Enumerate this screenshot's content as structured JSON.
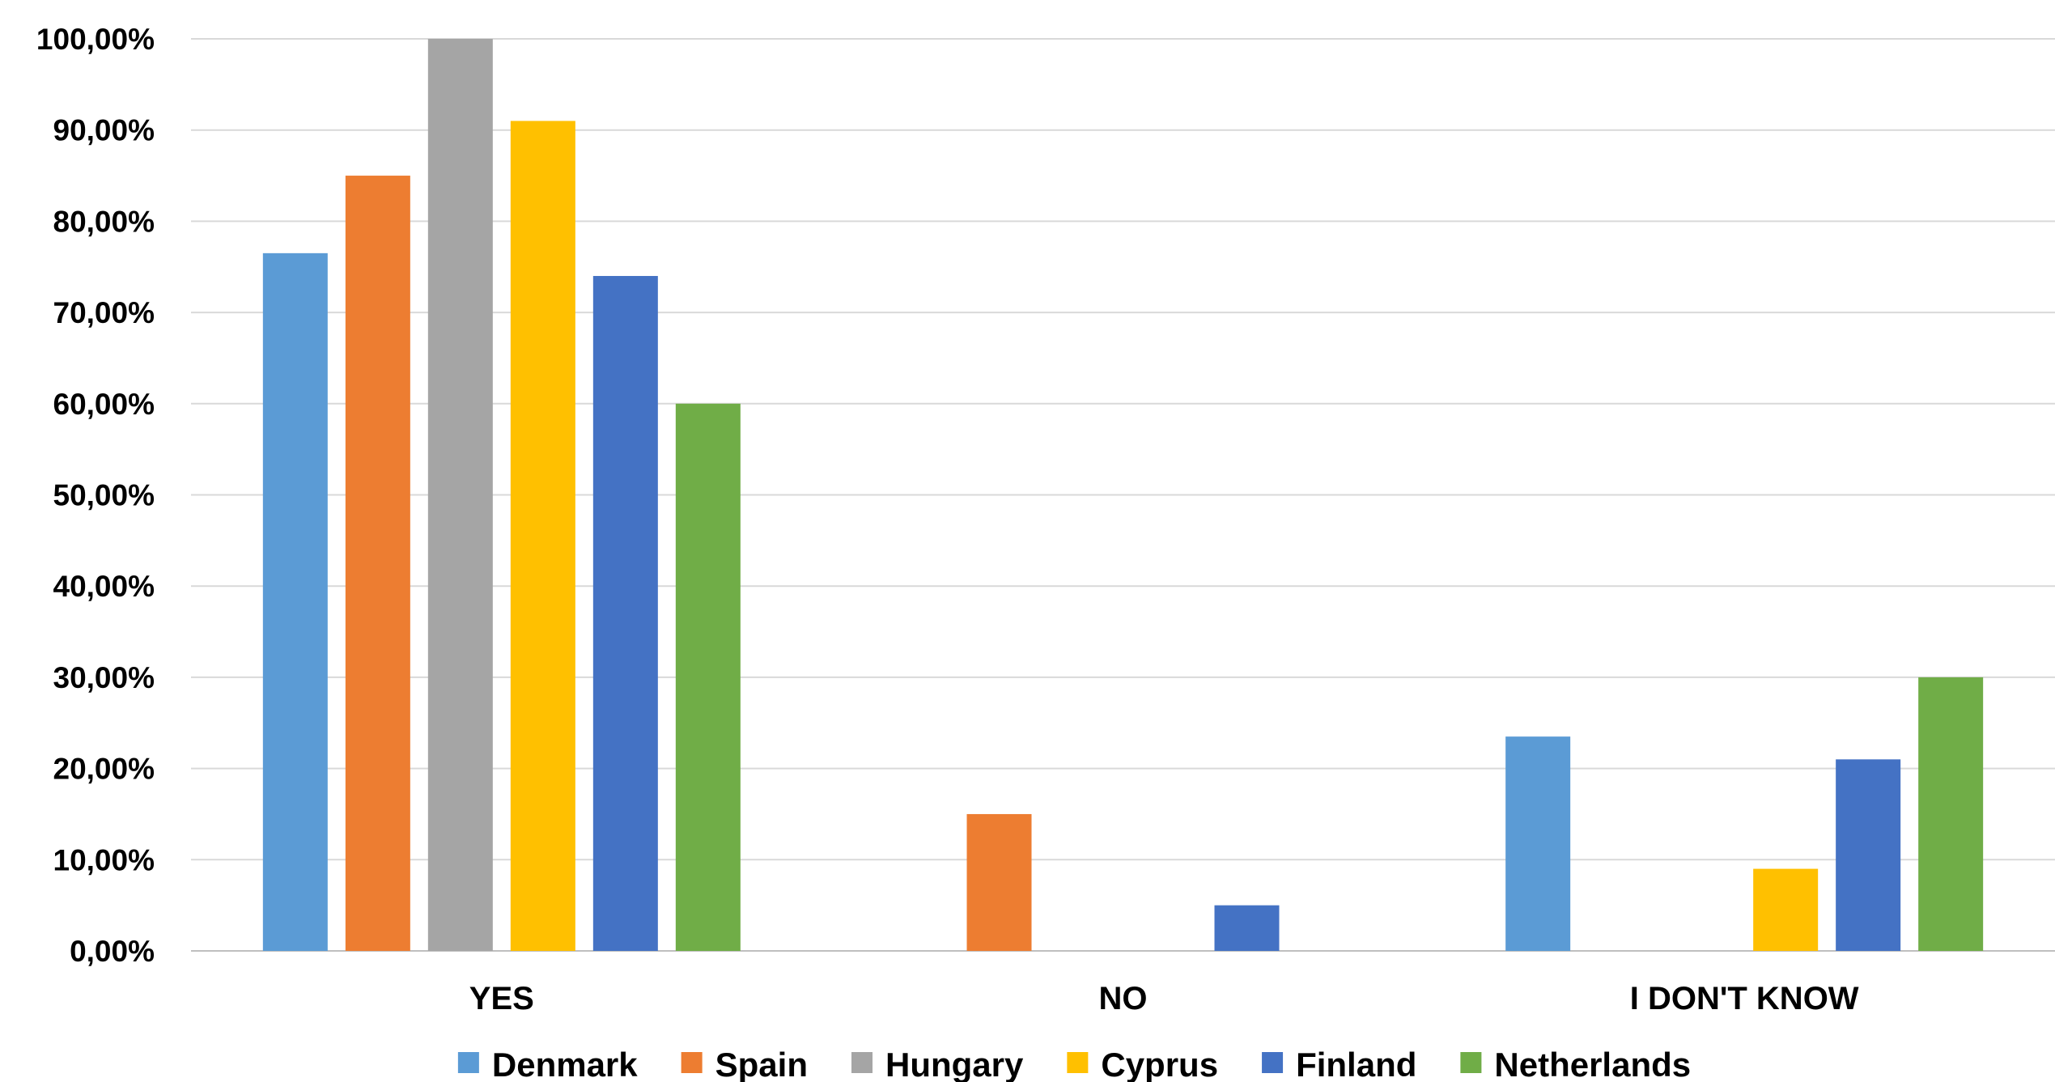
{
  "chart_data": {
    "type": "bar",
    "categories": [
      "YES",
      "NO",
      "I DON'T KNOW"
    ],
    "series": [
      {
        "name": "Denmark",
        "color": "#5b9bd5",
        "values": [
          76.5,
          0,
          23.5
        ]
      },
      {
        "name": "Spain",
        "color": "#ed7d31",
        "values": [
          85,
          15,
          0
        ]
      },
      {
        "name": "Hungary",
        "color": "#a5a5a5",
        "values": [
          100,
          0,
          0
        ]
      },
      {
        "name": "Cyprus",
        "color": "#ffc000",
        "values": [
          91,
          0,
          9
        ]
      },
      {
        "name": "Finland",
        "color": "#4472c4",
        "values": [
          74,
          5,
          21
        ]
      },
      {
        "name": "Netherlands",
        "color": "#70ad47",
        "values": [
          60,
          0,
          30
        ]
      }
    ],
    "ylim": [
      0,
      100
    ],
    "yticks": [
      "0,00%",
      "10,00%",
      "20,00%",
      "30,00%",
      "40,00%",
      "50,00%",
      "60,00%",
      "70,00%",
      "80,00%",
      "90,00%",
      "100,00%"
    ],
    "grid": true,
    "legend": "bottom"
  }
}
